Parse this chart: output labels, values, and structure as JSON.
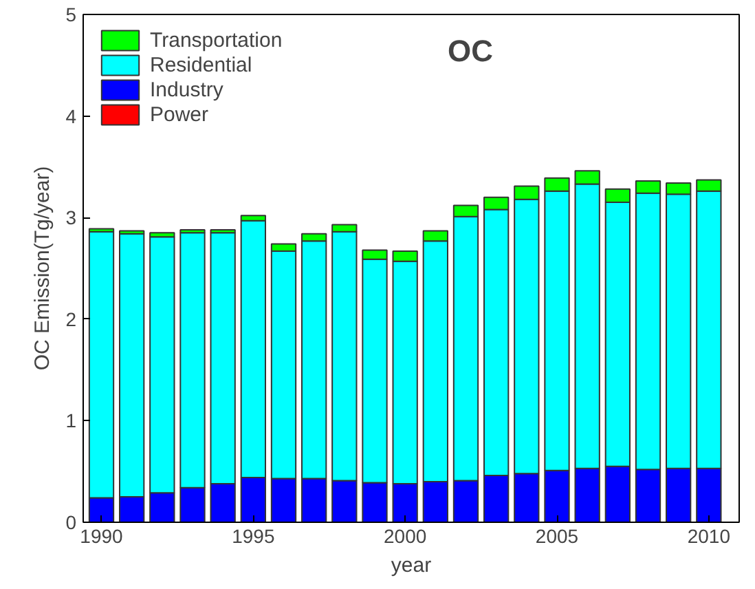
{
  "chart_data": {
    "type": "bar",
    "stacked": true,
    "xlabel": "year",
    "ylabel": "OC Emission(Tg/year)",
    "annotations": [
      "OC"
    ],
    "x": [
      1990,
      1991,
      1992,
      1993,
      1994,
      1995,
      1996,
      1997,
      1998,
      1999,
      2000,
      2001,
      2002,
      2003,
      2004,
      2005,
      2006,
      2007,
      2008,
      2009,
      2010
    ],
    "xlim": [
      1989.4,
      2011
    ],
    "xticks": [
      1990,
      1995,
      2000,
      2005,
      2010
    ],
    "ylim": [
      0,
      5
    ],
    "yticks": [
      0,
      1,
      2,
      3,
      4,
      5
    ],
    "grid": false,
    "legend": "top left",
    "series": [
      {
        "name": "Power",
        "color": "#ff0000",
        "values": [
          0,
          0,
          0,
          0,
          0,
          0,
          0,
          0,
          0,
          0,
          0,
          0,
          0,
          0,
          0,
          0,
          0,
          0,
          0,
          0,
          0
        ]
      },
      {
        "name": "Industry",
        "color": "#0000ff",
        "values": [
          0.24,
          0.25,
          0.29,
          0.34,
          0.38,
          0.44,
          0.43,
          0.43,
          0.41,
          0.39,
          0.38,
          0.4,
          0.41,
          0.46,
          0.48,
          0.51,
          0.53,
          0.55,
          0.52,
          0.53,
          0.53
        ]
      },
      {
        "name": "Residential",
        "color": "#00ffff",
        "values": [
          2.62,
          2.59,
          2.52,
          2.51,
          2.47,
          2.53,
          2.24,
          2.34,
          2.45,
          2.2,
          2.19,
          2.37,
          2.6,
          2.62,
          2.7,
          2.75,
          2.8,
          2.6,
          2.72,
          2.7,
          2.73
        ]
      },
      {
        "name": "Transportation",
        "color": "#00ff00",
        "values": [
          0.03,
          0.03,
          0.04,
          0.03,
          0.03,
          0.05,
          0.07,
          0.07,
          0.07,
          0.09,
          0.1,
          0.1,
          0.11,
          0.12,
          0.13,
          0.13,
          0.13,
          0.13,
          0.12,
          0.11,
          0.11
        ]
      }
    ]
  }
}
